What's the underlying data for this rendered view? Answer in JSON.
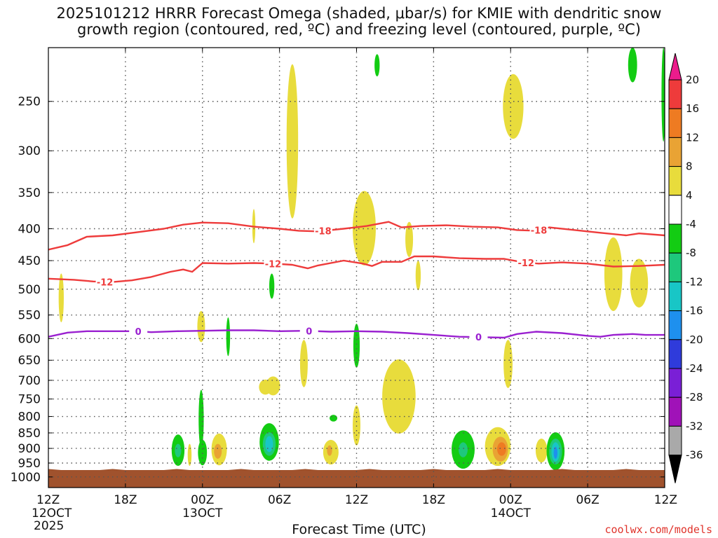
{
  "title_line1": "2025101212 HRRR Forecast Omega (shaded, μbar/s) for KMIE with dendritic snow",
  "title_line2": "growth region (contoured, red, ºC) and freezing level (contoured, purple, ºC)",
  "xlabel": "Forecast Time (UTC)",
  "credit": "coolwx.com/models",
  "colors": {
    "terrain": "#a0522d",
    "dgz_contour": "#ee3b3b",
    "freezing_contour": "#9a20d0",
    "grid": "#555555"
  },
  "chart_data": {
    "type": "heatmap",
    "ylabel": "",
    "y_axis": {
      "scale": "log",
      "inverted": true,
      "ylim_hPa": [
        205,
        1040
      ],
      "ticks": [
        250,
        300,
        350,
        400,
        450,
        500,
        550,
        600,
        650,
        700,
        750,
        800,
        850,
        900,
        950,
        1000
      ]
    },
    "x_axis": {
      "xlim_hours": [
        0,
        48
      ],
      "ticks": [
        {
          "hour": 0,
          "label": "12Z",
          "sub": "12OCT",
          "sub2": "2025"
        },
        {
          "hour": 6,
          "label": "18Z",
          "sub": "",
          "sub2": ""
        },
        {
          "hour": 12,
          "label": "00Z",
          "sub": "13OCT",
          "sub2": ""
        },
        {
          "hour": 18,
          "label": "06Z",
          "sub": "",
          "sub2": ""
        },
        {
          "hour": 24,
          "label": "12Z",
          "sub": "",
          "sub2": ""
        },
        {
          "hour": 30,
          "label": "18Z",
          "sub": "",
          "sub2": ""
        },
        {
          "hour": 36,
          "label": "00Z",
          "sub": "14OCT",
          "sub2": ""
        },
        {
          "hour": 42,
          "label": "06Z",
          "sub": "",
          "sub2": ""
        },
        {
          "hour": 48,
          "label": "12Z",
          "sub": "",
          "sub2": ""
        }
      ]
    },
    "grid": true,
    "colorbar": {
      "labels": [
        "20",
        "16",
        "12",
        "8",
        "4",
        "-4",
        "-8",
        "-12",
        "-16",
        "-20",
        "-24",
        "-28",
        "-32",
        "-36"
      ],
      "bins": [
        {
          "lo": 20,
          "hi": 24,
          "color": "#ec1c8c"
        },
        {
          "lo": 16,
          "hi": 20,
          "color": "#ee3b3b"
        },
        {
          "lo": 12,
          "hi": 16,
          "color": "#ee7b22"
        },
        {
          "lo": 8,
          "hi": 12,
          "color": "#e9a334"
        },
        {
          "lo": 4,
          "hi": 8,
          "color": "#e8dc3c"
        },
        {
          "lo": -4,
          "hi": 4,
          "color": "#ffffff"
        },
        {
          "lo": -8,
          "hi": -4,
          "color": "#13cc13"
        },
        {
          "lo": -12,
          "hi": -8,
          "color": "#1ec87c"
        },
        {
          "lo": -16,
          "hi": -12,
          "color": "#18c6c6"
        },
        {
          "lo": -20,
          "hi": -16,
          "color": "#1e90ee"
        },
        {
          "lo": -24,
          "hi": -20,
          "color": "#2f3bdb"
        },
        {
          "lo": -28,
          "hi": -24,
          "color": "#7a1fd6"
        },
        {
          "lo": -32,
          "hi": -28,
          "color": "#a012b8"
        },
        {
          "lo": -36,
          "hi": -32,
          "color": "#a9a9a9"
        },
        {
          "lo": -40,
          "hi": -36,
          "color": "#000000"
        }
      ]
    },
    "contours": [
      {
        "name": "-18",
        "color": "#ee3b3b",
        "label": "-18",
        "label_hours": [
          21.4,
          38.2
        ],
        "points": [
          [
            0,
            432
          ],
          [
            1.5,
            425
          ],
          [
            3,
            412
          ],
          [
            5,
            410
          ],
          [
            7,
            405
          ],
          [
            9,
            400
          ],
          [
            10.5,
            394
          ],
          [
            12,
            391
          ],
          [
            14,
            392
          ],
          [
            16,
            397
          ],
          [
            18,
            400
          ],
          [
            19.5,
            403
          ],
          [
            21,
            404
          ],
          [
            23,
            400
          ],
          [
            24.8,
            396
          ],
          [
            26.5,
            390
          ],
          [
            27.5,
            398
          ],
          [
            29,
            396
          ],
          [
            31,
            395
          ],
          [
            33,
            397
          ],
          [
            35,
            398
          ],
          [
            36.5,
            402
          ],
          [
            38,
            403
          ],
          [
            39,
            398
          ],
          [
            41,
            402
          ],
          [
            43,
            406
          ],
          [
            45,
            410
          ],
          [
            46,
            407
          ],
          [
            48,
            410
          ]
        ]
      },
      {
        "name": "-12",
        "color": "#ee3b3b",
        "label": "-12",
        "label_hours": [
          4.4,
          17.5,
          37.2
        ],
        "points": [
          [
            0,
            481
          ],
          [
            2,
            483
          ],
          [
            3.5,
            486
          ],
          [
            5,
            487
          ],
          [
            6.5,
            484
          ],
          [
            8,
            478
          ],
          [
            9.5,
            469
          ],
          [
            10.5,
            465
          ],
          [
            11.2,
            469
          ],
          [
            12,
            454
          ],
          [
            14,
            455
          ],
          [
            16,
            454
          ],
          [
            17.5,
            455
          ],
          [
            19,
            457
          ],
          [
            20.2,
            463
          ],
          [
            21,
            458
          ],
          [
            23,
            450
          ],
          [
            24.5,
            455
          ],
          [
            25.2,
            459
          ],
          [
            26,
            452
          ],
          [
            27.5,
            452
          ],
          [
            28.5,
            443
          ],
          [
            30,
            443
          ],
          [
            32,
            446
          ],
          [
            34,
            447
          ],
          [
            35.5,
            447
          ],
          [
            37,
            453
          ],
          [
            38.2,
            455
          ],
          [
            40,
            453
          ],
          [
            42,
            455
          ],
          [
            44,
            460
          ],
          [
            46,
            459
          ],
          [
            48,
            457
          ]
        ]
      },
      {
        "name": "0",
        "color": "#9a20d0",
        "label": "0",
        "label_hours": [
          7,
          20.3,
          33.5
        ],
        "points": [
          [
            0,
            596
          ],
          [
            1.5,
            587
          ],
          [
            3,
            584
          ],
          [
            5,
            584
          ],
          [
            7,
            584
          ],
          [
            8,
            586
          ],
          [
            10,
            584
          ],
          [
            12,
            583
          ],
          [
            14,
            582
          ],
          [
            16,
            582
          ],
          [
            18,
            584
          ],
          [
            20,
            583
          ],
          [
            22,
            585
          ],
          [
            24,
            584
          ],
          [
            26,
            585
          ],
          [
            28,
            588
          ],
          [
            30,
            592
          ],
          [
            32,
            596
          ],
          [
            34,
            597
          ],
          [
            35.5,
            598
          ],
          [
            36.5,
            590
          ],
          [
            38,
            585
          ],
          [
            40,
            588
          ],
          [
            42,
            594
          ],
          [
            43,
            596
          ],
          [
            44,
            592
          ],
          [
            45.5,
            590
          ],
          [
            46.5,
            592
          ],
          [
            48,
            592
          ]
        ]
      }
    ],
    "shaded_regions": [
      {
        "value": 5,
        "cx": 1.0,
        "p_top": 472,
        "p_bot": 565,
        "rx": 0.2
      },
      {
        "value": 5,
        "cx": 19.0,
        "p_top": 218,
        "p_bot": 385,
        "rx": 0.45
      },
      {
        "value": 5,
        "cx": 16.0,
        "p_top": 372,
        "p_bot": 422,
        "rx": 0.12
      },
      {
        "value": 5,
        "cx": 11.9,
        "p_top": 542,
        "p_bot": 608,
        "rx": 0.3
      },
      {
        "value": 5,
        "cx": 17.5,
        "p_top": 690,
        "p_bot": 740,
        "rx": 0.55
      },
      {
        "value": 5,
        "cx": 19.9,
        "p_top": 603,
        "p_bot": 718,
        "rx": 0.3
      },
      {
        "value": 5,
        "cx": 24.6,
        "p_top": 348,
        "p_bot": 458,
        "rx": 0.9
      },
      {
        "value": 5,
        "cx": 28.1,
        "p_top": 390,
        "p_bot": 444,
        "rx": 0.3
      },
      {
        "value": 5,
        "cx": 28.8,
        "p_top": 450,
        "p_bot": 502,
        "rx": 0.2
      },
      {
        "value": 5,
        "cx": 27.3,
        "p_top": 648,
        "p_bot": 852,
        "rx": 1.3
      },
      {
        "value": 5,
        "cx": 24.0,
        "p_top": 768,
        "p_bot": 890,
        "rx": 0.3
      },
      {
        "value": 5,
        "cx": 36.2,
        "p_top": 226,
        "p_bot": 287,
        "rx": 0.8
      },
      {
        "value": 5,
        "cx": 35.8,
        "p_top": 603,
        "p_bot": 720,
        "rx": 0.35
      },
      {
        "value": 5,
        "cx": 44.0,
        "p_top": 413,
        "p_bot": 542,
        "rx": 0.7
      },
      {
        "value": 5,
        "cx": 46.0,
        "p_top": 447,
        "p_bot": 535,
        "rx": 0.7
      },
      {
        "value": 5,
        "cx": 11.0,
        "p_top": 885,
        "p_bot": 960,
        "rx": 0.15
      },
      {
        "value": 5,
        "cx": 13.3,
        "p_top": 852,
        "p_bot": 958,
        "rx": 0.6
      },
      {
        "value": 5,
        "cx": 16.9,
        "p_top": 698,
        "p_bot": 738,
        "rx": 0.5
      },
      {
        "value": 5,
        "cx": 22.0,
        "p_top": 872,
        "p_bot": 955,
        "rx": 0.6
      },
      {
        "value": 5,
        "cx": 35.0,
        "p_top": 832,
        "p_bot": 960,
        "rx": 1.0
      },
      {
        "value": 5,
        "cx": 38.4,
        "p_top": 868,
        "p_bot": 948,
        "rx": 0.45
      },
      {
        "value": 9,
        "cx": 13.2,
        "p_top": 885,
        "p_bot": 935,
        "rx": 0.3
      },
      {
        "value": 9,
        "cx": 21.9,
        "p_top": 890,
        "p_bot": 925,
        "rx": 0.2
      },
      {
        "value": 9,
        "cx": 35.2,
        "p_top": 862,
        "p_bot": 945,
        "rx": 0.6
      },
      {
        "value": 13,
        "cx": 35.3,
        "p_top": 880,
        "p_bot": 925,
        "rx": 0.35
      },
      {
        "value": -5,
        "cx": 25.6,
        "p_top": 210,
        "p_bot": 228,
        "rx": 0.2
      },
      {
        "value": -5,
        "cx": 17.4,
        "p_top": 472,
        "p_bot": 518,
        "rx": 0.2
      },
      {
        "value": -5,
        "cx": 14.0,
        "p_top": 555,
        "p_bot": 640,
        "rx": 0.15
      },
      {
        "value": -5,
        "cx": 24.0,
        "p_top": 568,
        "p_bot": 668,
        "rx": 0.25
      },
      {
        "value": -5,
        "cx": 11.9,
        "p_top": 725,
        "p_bot": 900,
        "rx": 0.2
      },
      {
        "value": -5,
        "cx": 10.1,
        "p_top": 855,
        "p_bot": 960,
        "rx": 0.5
      },
      {
        "value": -5,
        "cx": 12.0,
        "p_top": 872,
        "p_bot": 958,
        "rx": 0.35
      },
      {
        "value": -5,
        "cx": 17.2,
        "p_top": 820,
        "p_bot": 942,
        "rx": 0.75
      },
      {
        "value": -5,
        "cx": 22.2,
        "p_top": 795,
        "p_bot": 815,
        "rx": 0.3
      },
      {
        "value": -5,
        "cx": 32.3,
        "p_top": 842,
        "p_bot": 970,
        "rx": 0.9
      },
      {
        "value": -5,
        "cx": 39.5,
        "p_top": 848,
        "p_bot": 975,
        "rx": 0.7
      },
      {
        "value": -5,
        "cx": 45.5,
        "p_top": 205,
        "p_bot": 233,
        "rx": 0.35
      },
      {
        "value": -5,
        "cx": 47.9,
        "p_top": 205,
        "p_bot": 290,
        "rx": 0.15
      },
      {
        "value": -9,
        "cx": 17.2,
        "p_top": 848,
        "p_bot": 925,
        "rx": 0.5
      },
      {
        "value": -9,
        "cx": 39.5,
        "p_top": 868,
        "p_bot": 955,
        "rx": 0.5
      },
      {
        "value": -9,
        "cx": 32.3,
        "p_top": 880,
        "p_bot": 930,
        "rx": 0.35
      },
      {
        "value": -9,
        "cx": 10.1,
        "p_top": 885,
        "p_bot": 930,
        "rx": 0.25
      },
      {
        "value": -13,
        "cx": 17.2,
        "p_top": 860,
        "p_bot": 912,
        "rx": 0.3
      },
      {
        "value": -13,
        "cx": 39.5,
        "p_top": 880,
        "p_bot": 945,
        "rx": 0.32
      },
      {
        "value": -17,
        "cx": 39.5,
        "p_top": 895,
        "p_bot": 935,
        "rx": 0.15
      }
    ],
    "terrain": {
      "p_surface": 975
    }
  }
}
